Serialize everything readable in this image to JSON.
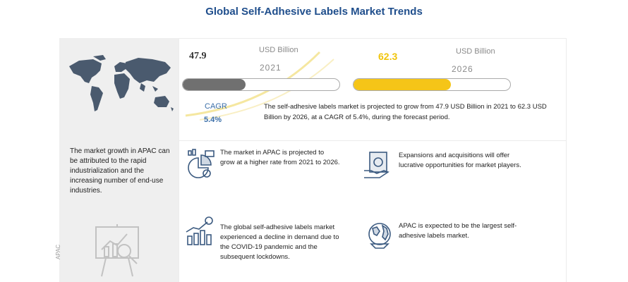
{
  "title": "Global Self-Adhesive Labels Market Trends",
  "market": {
    "start_value": "47.9",
    "start_unit": "USD Billion",
    "start_year": "2021",
    "start_fill_fraction": 0.4,
    "end_value": "62.3",
    "end_unit": "USD Billion",
    "end_year": "2026",
    "end_fill_fraction": 0.62,
    "cagr_label": "CAGR",
    "cagr_value": "5.4%",
    "projection_text": "The self-adhesive labels market is projected to grow from 47.9 USD Billion in 2021 to 62.3 USD Billion by 2026, at a CAGR of 5.4%, during the forecast period."
  },
  "left_panel": {
    "text": "The market growth in APAC can be attributed to the rapid industrialization and the increasing number of end-use industries.",
    "vertical_label": "APAC"
  },
  "features": [
    {
      "icon": "pie-chart-analysis-icon",
      "text": "The market in APAC is projected to grow at a higher rate from 2021 to 2026."
    },
    {
      "icon": "money-hand-icon",
      "text": "Expansions and acquisitions will offer lucrative opportunities for market players."
    },
    {
      "icon": "bar-chart-growth-icon",
      "text": "The global self-adhesive labels market experienced a decline in demand due to the COVID-19 pandemic and the subsequent lockdowns."
    },
    {
      "icon": "globe-icon",
      "text": "APAC is expected to be the largest self-adhesive labels market."
    }
  ],
  "colors": {
    "title": "#1f4e8c",
    "accent_yellow": "#f5c518",
    "bar_gray": "#707070",
    "cagr_blue": "#3a6ea8",
    "map": "#4a5a6e",
    "icon_stroke": "#3b5a80"
  }
}
